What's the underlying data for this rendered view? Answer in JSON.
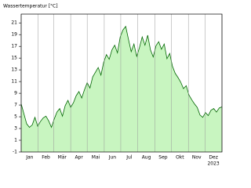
{
  "chart_data": {
    "type": "area",
    "title": "Wassertemperatur [°C]",
    "categories": [
      "Jan",
      "Feb",
      "Mär",
      "Apr",
      "Mai",
      "Jun",
      "Jul",
      "Aug",
      "Sep",
      "Okt",
      "Nov",
      "Dez"
    ],
    "year_label": "2023",
    "x": [
      0,
      5,
      10,
      15,
      20,
      25,
      30,
      35,
      40,
      45,
      50,
      55,
      60,
      65,
      70,
      75,
      80,
      85,
      90,
      95,
      100,
      105,
      110,
      115,
      120,
      125,
      130,
      135,
      140,
      145,
      150,
      155,
      160,
      165,
      170,
      175,
      180,
      185,
      190,
      195,
      200,
      205,
      210,
      215,
      220,
      225,
      230,
      235,
      240,
      245,
      250,
      255,
      260,
      265,
      270,
      275,
      280,
      285,
      290,
      295,
      300,
      305,
      310,
      315,
      320,
      325,
      330,
      335,
      340,
      345,
      350,
      355,
      360,
      365
    ],
    "series": [
      {
        "color": "#006600",
        "fill": "#c8f5c0",
        "values": [
          7.2,
          5.5,
          3.8,
          3.2,
          3.6,
          4.9,
          3.4,
          4.2,
          4.8,
          5.1,
          4.3,
          3.2,
          4.6,
          5.8,
          6.4,
          5.1,
          6.9,
          7.8,
          6.6,
          7.4,
          8.6,
          9.3,
          8.2,
          9.6,
          10.8,
          9.9,
          11.8,
          12.6,
          13.4,
          12.1,
          14.3,
          15.6,
          14.8,
          16.4,
          17.2,
          15.9,
          18.6,
          19.8,
          20.4,
          18.2,
          16.1,
          17.4,
          15.3,
          16.8,
          18.6,
          17.2,
          18.9,
          16.4,
          15.2,
          17.1,
          17.8,
          16.5,
          17.4,
          14.9,
          15.8,
          13.6,
          12.4,
          11.7,
          10.9,
          9.8,
          10.3,
          8.7,
          7.9,
          7.2,
          6.6,
          5.3,
          4.9,
          5.7,
          5.2,
          6.1,
          6.4,
          5.8,
          6.5,
          6.7
        ]
      }
    ],
    "xlim": [
      0,
      365
    ],
    "xticks": [
      0,
      31,
      59,
      90,
      120,
      151,
      181,
      212,
      243,
      273,
      304,
      334,
      365
    ],
    "ylim": [
      -1,
      22.5
    ],
    "yticks": [
      -1,
      1,
      3,
      5,
      7,
      9,
      11,
      13,
      15,
      17,
      19,
      21
    ],
    "grid": true
  }
}
